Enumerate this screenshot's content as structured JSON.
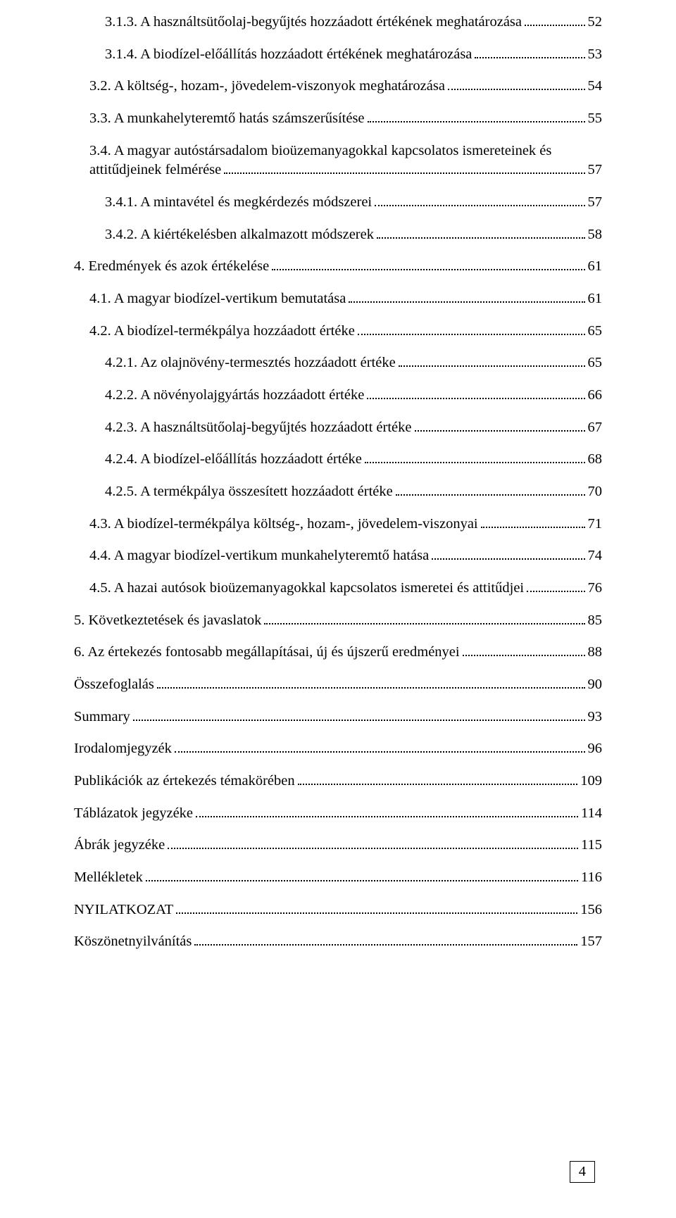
{
  "toc": [
    {
      "indent": 2,
      "text": "3.1.3. A használtsütőolaj-begyűjtés hozzáadott értékének meghatározása",
      "page": "52"
    },
    {
      "indent": 2,
      "text": "3.1.4. A biodízel-előállítás hozzáadott értékének meghatározása",
      "page": "53"
    },
    {
      "indent": 1,
      "text": "3.2. A költség-, hozam-, jövedelem-viszonyok meghatározása",
      "page": "54"
    },
    {
      "indent": 1,
      "text": "3.3. A munkahelyteremtő hatás számszerűsítése",
      "page": "55"
    },
    {
      "indent": 1,
      "wrap": true,
      "line1": "3.4. A magyar autóstársadalom bioüzemanyagokkal kapcsolatos ismereteinek és",
      "line2": "attitűdjeinek felmérése",
      "page": "57"
    },
    {
      "indent": 2,
      "text": "3.4.1. A mintavétel és megkérdezés módszerei",
      "page": "57"
    },
    {
      "indent": 2,
      "text": "3.4.2. A kiértékelésben alkalmazott módszerek",
      "page": "58"
    },
    {
      "indent": 0,
      "text": "4. Eredmények és azok értékelése",
      "page": "61"
    },
    {
      "indent": 1,
      "text": "4.1. A magyar biodízel-vertikum bemutatása",
      "page": "61"
    },
    {
      "indent": 1,
      "text": "4.2. A biodízel-termékpálya hozzáadott értéke",
      "page": "65"
    },
    {
      "indent": 2,
      "text": "4.2.1. Az olajnövény-termesztés hozzáadott értéke",
      "page": "65"
    },
    {
      "indent": 2,
      "text": "4.2.2. A növényolajgyártás hozzáadott értéke",
      "page": "66"
    },
    {
      "indent": 2,
      "text": "4.2.3. A használtsütőolaj-begyűjtés hozzáadott értéke",
      "page": "67"
    },
    {
      "indent": 2,
      "text": "4.2.4. A biodízel-előállítás hozzáadott értéke",
      "page": "68"
    },
    {
      "indent": 2,
      "text": "4.2.5. A termékpálya összesített hozzáadott értéke",
      "page": "70"
    },
    {
      "indent": 1,
      "text": "4.3. A biodízel-termékpálya költség-, hozam-, jövedelem-viszonyai",
      "page": "71"
    },
    {
      "indent": 1,
      "text": "4.4. A magyar biodízel-vertikum munkahelyteremtő hatása",
      "page": "74"
    },
    {
      "indent": 1,
      "text": "4.5. A hazai autósok bioüzemanyagokkal kapcsolatos ismeretei és attitűdjei",
      "page": "76"
    },
    {
      "indent": 0,
      "text": "5. Következtetések és javaslatok",
      "page": "85"
    },
    {
      "indent": 0,
      "text": "6. Az értekezés fontosabb megállapításai, új és újszerű eredményei",
      "page": "88"
    },
    {
      "indent": 0,
      "text": "Összefoglalás",
      "page": "90"
    },
    {
      "indent": 0,
      "text": "Summary",
      "page": "93"
    },
    {
      "indent": 0,
      "text": "Irodalomjegyzék",
      "page": "96"
    },
    {
      "indent": 0,
      "text": "Publikációk az értekezés témakörében",
      "page": "109"
    },
    {
      "indent": 0,
      "text": "Táblázatok jegyzéke",
      "page": "114"
    },
    {
      "indent": 0,
      "text": "Ábrák jegyzéke",
      "page": "115"
    },
    {
      "indent": 0,
      "text": "Mellékletek",
      "page": "116"
    },
    {
      "indent": 0,
      "text": "NYILATKOZAT",
      "page": "156"
    },
    {
      "indent": 0,
      "text": "Köszönetnyilvánítás",
      "page": "157"
    }
  ],
  "pageNumber": "4"
}
